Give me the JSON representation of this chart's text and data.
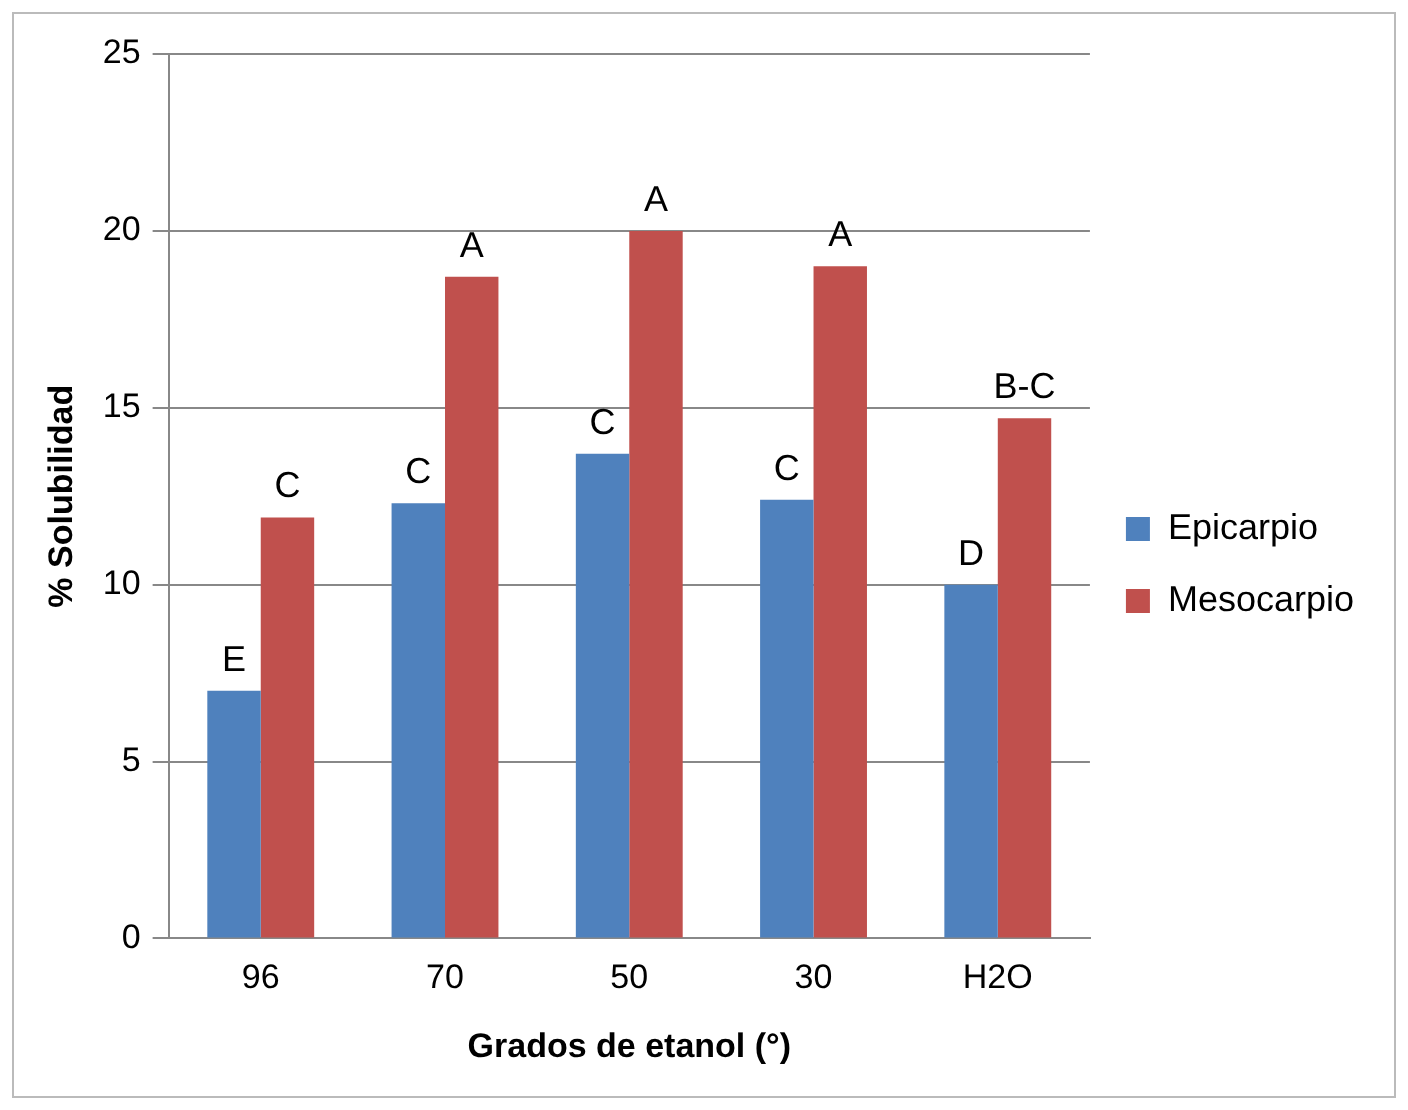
{
  "chart_data": {
    "type": "bar",
    "xlabel": "Grados de etanol (°)",
    "ylabel": "% Solubilidad",
    "categories": [
      "96",
      "70",
      "50",
      "30",
      "H2O"
    ],
    "series": [
      {
        "name": "Epicarpio",
        "color": "#4f81bd",
        "values": [
          7.0,
          12.3,
          13.7,
          12.4,
          10.0
        ],
        "value_labels": [
          "E",
          "C",
          "C",
          "C",
          "D"
        ]
      },
      {
        "name": "Mesocarpio",
        "color": "#c0504d",
        "values": [
          11.9,
          18.7,
          20.0,
          19.0,
          14.7
        ],
        "value_labels": [
          "C",
          "A",
          "A",
          "A",
          "B-C"
        ]
      }
    ],
    "ylim": [
      0,
      25
    ],
    "yticks": [
      0,
      5,
      10,
      15,
      20,
      25
    ],
    "grid": "y",
    "legend": "right"
  }
}
